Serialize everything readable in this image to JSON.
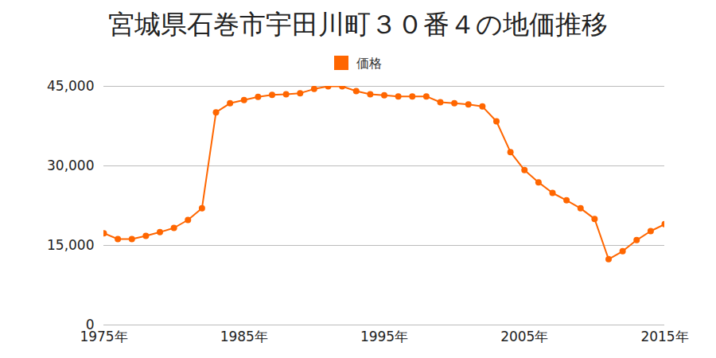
{
  "chart_data": {
    "type": "line",
    "title": "宮城県石巻市宇田川町３０番４の地価推移",
    "x": [
      1975,
      1976,
      1977,
      1978,
      1979,
      1980,
      1981,
      1982,
      1983,
      1984,
      1985,
      1986,
      1987,
      1988,
      1989,
      1990,
      1991,
      1992,
      1993,
      1994,
      1995,
      1996,
      1997,
      1998,
      1999,
      2000,
      2001,
      2002,
      2003,
      2004,
      2005,
      2006,
      2007,
      2008,
      2009,
      2010,
      2011,
      2012,
      2013,
      2014,
      2015
    ],
    "series": [
      {
        "name": "価格",
        "color": "#ff6600",
        "marker": "circle",
        "values": [
          17300,
          16200,
          16200,
          16800,
          17500,
          18300,
          19800,
          22000,
          40100,
          41800,
          42400,
          43000,
          43400,
          43500,
          43700,
          44500,
          45000,
          45000,
          44100,
          43500,
          43300,
          43100,
          43100,
          43100,
          42000,
          41800,
          41600,
          41200,
          38400,
          32600,
          29200,
          26900,
          24900,
          23500,
          22000,
          20000,
          12400,
          13900,
          16000,
          17700,
          19000
        ]
      }
    ],
    "xlim": [
      1975,
      2015
    ],
    "xticks": [
      {
        "value": 1975,
        "label": "1975年"
      },
      {
        "value": 1985,
        "label": "1985年"
      },
      {
        "value": 1995,
        "label": "1995年"
      },
      {
        "value": 2005,
        "label": "2005年"
      },
      {
        "value": 2015,
        "label": "2015年"
      }
    ],
    "ylim": [
      0,
      45000
    ],
    "yticks": [
      0,
      {
        "value": 15000,
        "label": "15,000"
      },
      {
        "value": 30000,
        "label": "30,000"
      },
      {
        "value": 45000,
        "label": "45,000"
      }
    ],
    "grid": true,
    "legend": "top"
  }
}
